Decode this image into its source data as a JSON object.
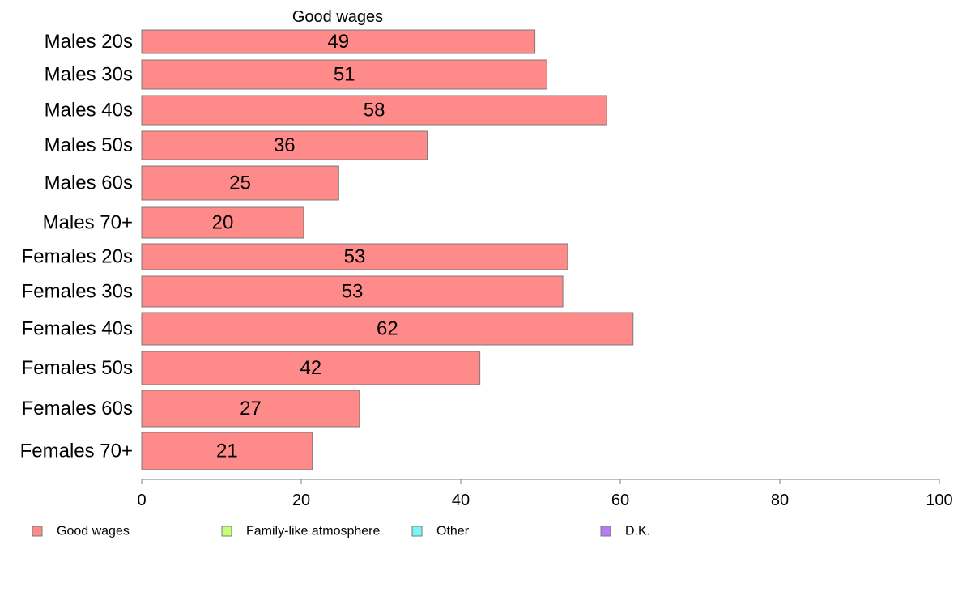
{
  "chart_data": {
    "type": "bar",
    "orientation": "horizontal",
    "title": "Good wages",
    "xlabel": "",
    "ylabel": "",
    "xlim": [
      0,
      100
    ],
    "x_ticks": [
      0,
      20,
      40,
      60,
      80,
      100
    ],
    "grid": false,
    "categories": [
      "Males 20s",
      "Males 30s",
      "Males 40s",
      "Males 50s",
      "Males 60s",
      "Males 70+",
      "Females 20s",
      "Females 30s",
      "Females 40s",
      "Females 50s",
      "Females 60s",
      "Females 70+"
    ],
    "series": [
      {
        "name": "Good wages",
        "color": "#ff8a8a",
        "values": [
          49.3,
          50.8,
          58.3,
          35.8,
          24.7,
          20.3,
          53.4,
          52.8,
          61.6,
          42.4,
          27.3,
          21.4
        ],
        "labels": [
          "49",
          "51",
          "58",
          "36",
          "25",
          "20",
          "53",
          "53",
          "62",
          "42",
          "27",
          "21"
        ]
      }
    ],
    "legend": {
      "placement": "bottom",
      "items": [
        {
          "label": "Good wages",
          "color": "#ff8a8a"
        },
        {
          "label": "Family-like atmosphere",
          "color": "#c4ff7a"
        },
        {
          "label": "Other",
          "color": "#7af5f5"
        },
        {
          "label": "D.K.",
          "color": "#b77cf5"
        }
      ]
    }
  }
}
